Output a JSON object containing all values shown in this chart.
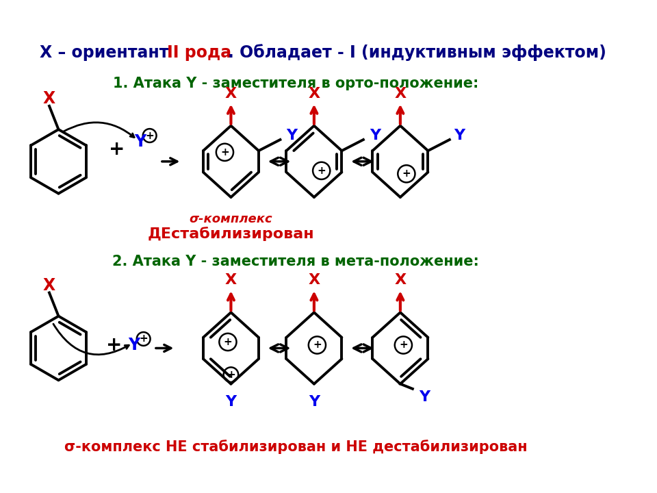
{
  "title_part1": "X – ориентант ",
  "title_part2": "II рода",
  "title_part3": ". Обладает - I (индуктивным эффектом)",
  "section1": "1. Атака Y - заместителя в орто-положение:",
  "section2": "2. Атака Y - заместителя в мета-положение:",
  "sigma_complex": "σ-комплекс",
  "destab": "ДЕстабилизирован",
  "bottom": "σ-комплекс НЕ стабилизирован и НЕ дестабилизирован",
  "bg_color": "#ffffff",
  "col_darkblue": "#000080",
  "col_red": "#cc0000",
  "col_green": "#006400",
  "col_blue": "#0000ee",
  "col_black": "#000000"
}
